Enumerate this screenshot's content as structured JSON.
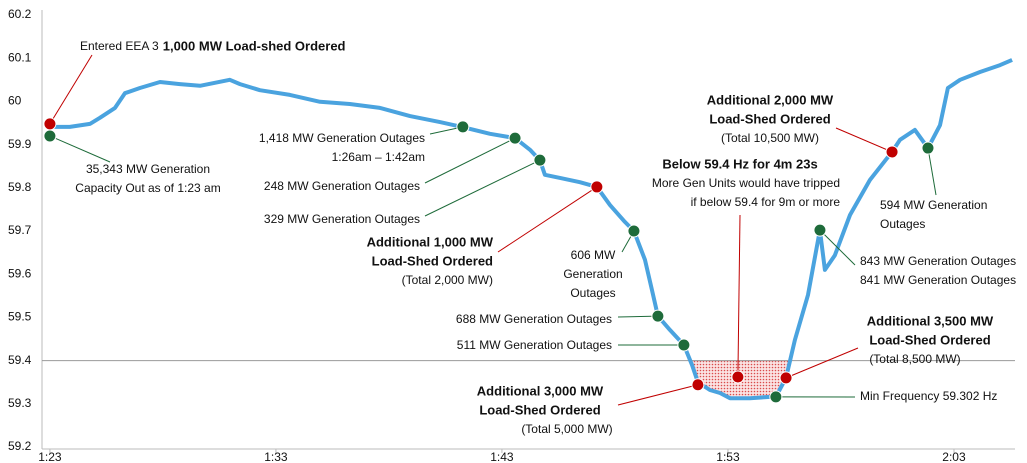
{
  "chart_data": {
    "type": "line",
    "x": [
      82.78,
      83.22,
      83.88,
      84.77,
      85.21,
      85.88,
      86.32,
      86.98,
      87.87,
      88.75,
      89.64,
      90.96,
      91.41,
      92.29,
      93.62,
      94.95,
      96.27,
      97.6,
      98.93,
      100.26,
      101.23,
      102.47,
      103.58,
      104.24,
      104.68,
      104.9,
      105.57,
      106.45,
      107.2,
      107.78,
      108.44,
      108.84,
      109.33,
      109.64,
      109.9,
      110.43,
      111.05,
      111.41,
      111.67,
      112.2,
      112.65,
      113.09,
      113.97,
      114.86,
      115.21,
      115.57,
      115.96,
      116.54,
      117.07,
      117.29,
      117.73,
      118.4,
      119.28,
      120.26,
      120.61,
      121.27,
      121.85,
      122.38,
      122.73,
      123.27,
      124.15,
      125.04,
      125.57
    ],
    "values": [
      59.948,
      59.941,
      59.941,
      59.948,
      59.962,
      59.985,
      60.019,
      60.031,
      60.045,
      60.04,
      60.036,
      60.05,
      60.04,
      60.026,
      60.015,
      59.999,
      59.994,
      59.985,
      59.966,
      59.952,
      59.941,
      59.925,
      59.915,
      59.888,
      59.864,
      59.83,
      59.823,
      59.813,
      59.802,
      59.76,
      59.721,
      59.7,
      59.633,
      59.563,
      59.503,
      59.471,
      59.436,
      59.39,
      59.35,
      59.332,
      59.325,
      59.313,
      59.313,
      59.316,
      59.325,
      59.36,
      59.448,
      59.552,
      59.702,
      59.61,
      59.644,
      59.737,
      59.818,
      59.883,
      59.911,
      59.934,
      59.892,
      59.945,
      60.031,
      60.05,
      60.068,
      60.084,
      60.096
    ],
    "color": "#4aa3df",
    "xlim": [
      82.65,
      125.7
    ],
    "ylim": [
      59.2,
      60.2
    ],
    "xticks": [
      {
        "value": 83,
        "label": "1:23"
      },
      {
        "value": 93,
        "label": "1:33"
      },
      {
        "value": 103,
        "label": "1:43"
      },
      {
        "value": 113,
        "label": "1:53"
      },
      {
        "value": 123,
        "label": "2:03"
      }
    ],
    "yticks": [
      59.2,
      59.3,
      59.4,
      59.5,
      59.6,
      59.7,
      59.8,
      59.9,
      60,
      60.1,
      60.2
    ],
    "threshold": 59.4,
    "threshold_color": "#999999",
    "region_color": "#e88a8a",
    "events": [
      {
        "x": 83.0,
        "y": 59.948,
        "color": "#c00000",
        "note": [
          "Entered EEA 3"
        ],
        "alert": [
          "1,000 MW Load-shed Ordered"
        ]
      },
      {
        "x": 83.0,
        "y": 59.92,
        "color": "#1e6b3a",
        "note": [
          "35,343 MW Generation",
          "Capacity Out as of 1:23 am"
        ],
        "alert": []
      },
      {
        "x": 101.27,
        "y": 59.941,
        "color": "#1e6b3a",
        "note": [
          "1,418 MW Generation Outages",
          "1:26am – 1:42am"
        ],
        "alert": []
      },
      {
        "x": 103.58,
        "y": 59.915,
        "color": "#1e6b3a",
        "note": [
          "248 MW Generation Outages"
        ],
        "alert": []
      },
      {
        "x": 104.68,
        "y": 59.864,
        "color": "#1e6b3a",
        "note": [
          "329 MW Generation Outages"
        ],
        "alert": []
      },
      {
        "x": 107.2,
        "y": 59.802,
        "color": "#c00000",
        "note": [
          "(Total 2,000 MW)"
        ],
        "alert": [
          "Additional 1,000 MW",
          "Load-Shed Ordered"
        ]
      },
      {
        "x": 108.84,
        "y": 59.7,
        "color": "#1e6b3a",
        "note": [
          "606 MW",
          "Generation",
          "Outages"
        ],
        "alert": []
      },
      {
        "x": 109.9,
        "y": 59.503,
        "color": "#1e6b3a",
        "note": [
          "688 MW Generation Outages"
        ],
        "alert": []
      },
      {
        "x": 111.05,
        "y": 59.436,
        "color": "#1e6b3a",
        "note": [
          "511 MW Generation Outages"
        ],
        "alert": []
      },
      {
        "x": 111.67,
        "y": 59.344,
        "color": "#c00000",
        "note": [
          "(Total 5,000 MW)"
        ],
        "alert": [
          "Additional 3,000 MW",
          "Load-Shed Ordered"
        ]
      },
      {
        "x": 115.57,
        "y": 59.36,
        "color": "#c00000",
        "note": [
          "(Total 8,500 MW)"
        ],
        "alert": [
          "Additional 3,500 MW",
          "Load-Shed Ordered"
        ]
      },
      {
        "x": 115.12,
        "y": 59.316,
        "color": "#1e6b3a",
        "note": [
          "Min Frequency 59.302 Hz"
        ],
        "alert": []
      },
      {
        "x": 117.07,
        "y": 59.702,
        "color": "#1e6b3a",
        "note": [
          "843 MW Generation Outages",
          "841 MW Generation Outages"
        ],
        "alert": []
      },
      {
        "x": 120.26,
        "y": 59.883,
        "color": "#c00000",
        "note": [
          "(Total 10,500 MW)"
        ],
        "alert": [
          "Additional 2,000 MW",
          "Load-Shed Ordered"
        ]
      },
      {
        "x": 121.85,
        "y": 59.892,
        "color": "#1e6b3a",
        "note": [
          "594 MW Generation",
          "Outages"
        ],
        "alert": []
      },
      {
        "x": 113.44,
        "y": 59.362,
        "color": "#c00000",
        "note": [
          "More Gen Units would have tripped",
          "if below 59.4 for 9m or more"
        ],
        "alert": [
          "Below 59.4 Hz for 4m 23s"
        ]
      }
    ]
  }
}
